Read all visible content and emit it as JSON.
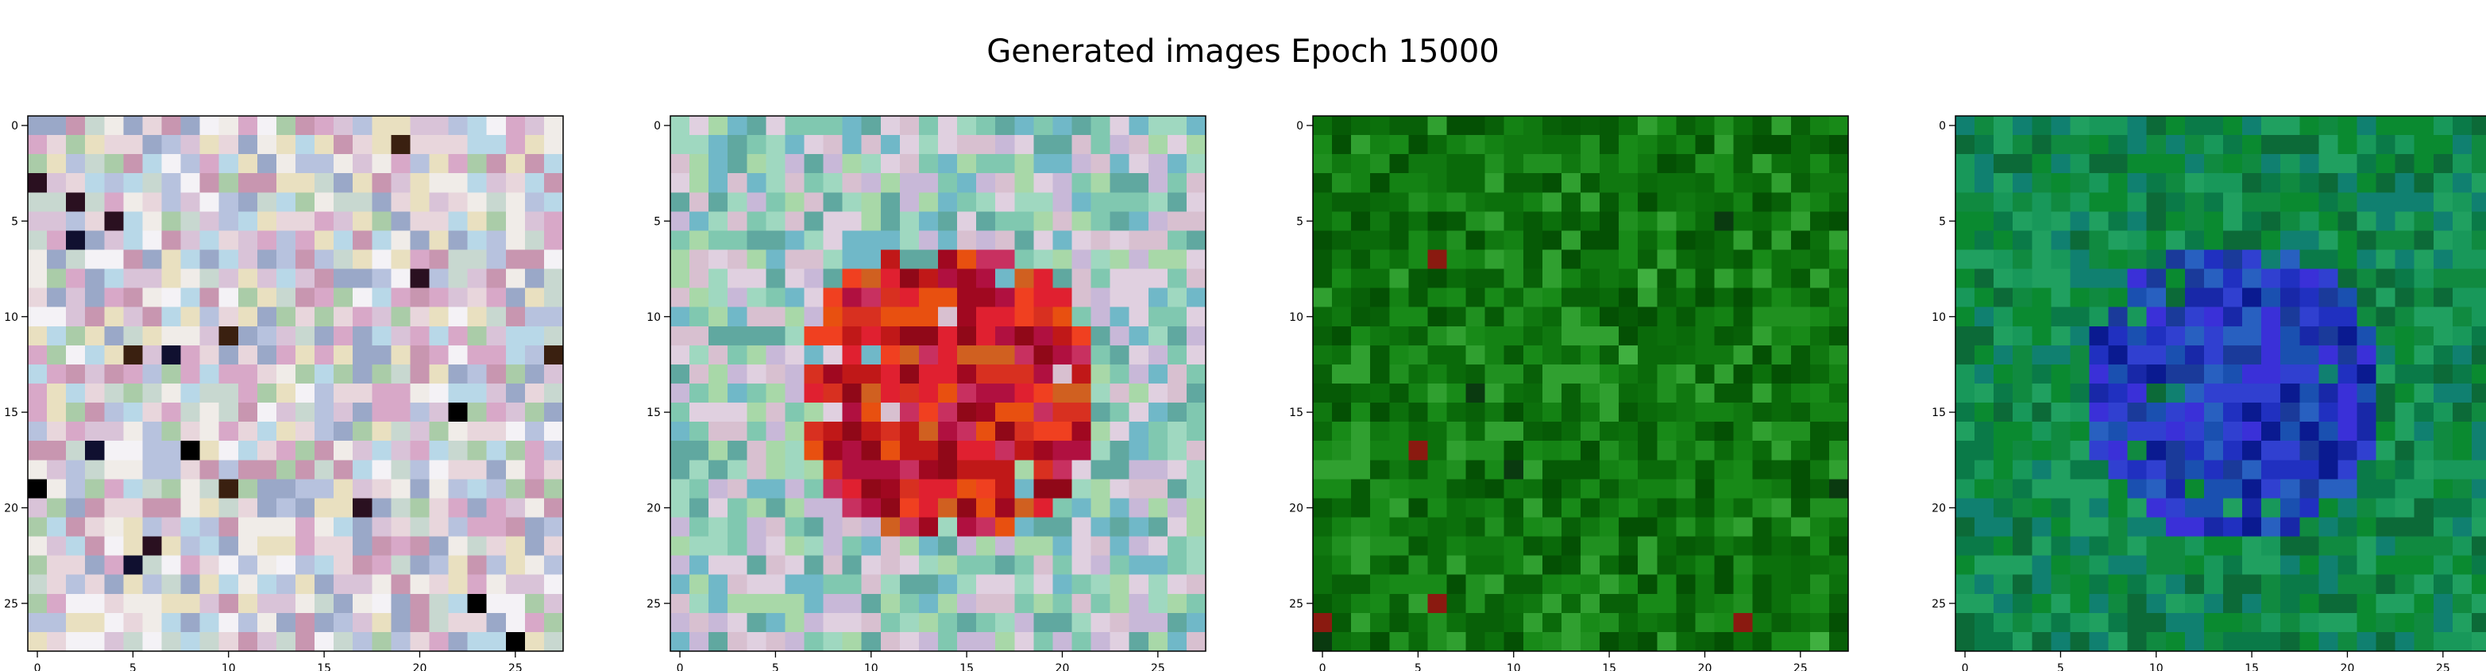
{
  "title": "Generated images Epoch 15000",
  "chart_data": [
    {
      "type": "heatmap",
      "grid_size": 28,
      "xlim": [
        -0.5,
        27.5
      ],
      "ylim": [
        27.5,
        -0.5
      ],
      "xticks": [
        0,
        5,
        10,
        15,
        20,
        25
      ],
      "yticks": [
        0,
        5,
        10,
        15,
        20,
        25
      ],
      "tick_labels": [
        "0",
        "5",
        "10",
        "15",
        "20",
        "25"
      ],
      "palette": [
        "#e8d6dc",
        "#d9c3d8",
        "#c8d8d0",
        "#f0ece8",
        "#b7c2de",
        "#d8a8c8",
        "#aacca8",
        "#e9e0c0",
        "#9aa8c8",
        "#c896b0",
        "#f4f2f6",
        "#b8d8e8"
      ],
      "dark_accents": [
        "#101030",
        "#2a1020",
        "#3a2010",
        "#000000"
      ],
      "pattern": "noise"
    },
    {
      "type": "heatmap",
      "grid_size": 28,
      "xlim": [
        -0.5,
        27.5
      ],
      "ylim": [
        27.5,
        -0.5
      ],
      "xticks": [
        0,
        5,
        10,
        15,
        20,
        25
      ],
      "yticks": [
        0,
        5,
        10,
        15,
        20,
        25
      ],
      "tick_labels": [
        "0",
        "5",
        "10",
        "15",
        "20",
        "25"
      ],
      "palette": [
        "#9fd8c0",
        "#c8b8d8",
        "#80c8b0",
        "#d8c0d0",
        "#70b8c8",
        "#a8d8a8",
        "#e0d0e0",
        "#60a8a0"
      ],
      "center_palette": [
        "#c01818",
        "#a00820",
        "#d83020",
        "#e85010",
        "#b01040",
        "#f04020",
        "#c83060",
        "#d06020",
        "#900818",
        "#e02030"
      ],
      "pattern": "center-blob"
    },
    {
      "type": "heatmap",
      "grid_size": 28,
      "xlim": [
        -0.5,
        27.5
      ],
      "ylim": [
        27.5,
        -0.5
      ],
      "xticks": [
        0,
        5,
        10,
        15,
        20,
        25
      ],
      "yticks": [
        0,
        5,
        10,
        15,
        20,
        25
      ],
      "tick_labels": [
        "0",
        "5",
        "10",
        "15",
        "20",
        "25"
      ],
      "palette": [
        "#0a6a0a",
        "#107810",
        "#086008",
        "#188a18",
        "#0c700c",
        "#209020",
        "#065a06",
        "#148214",
        "#30a030",
        "#045004"
      ],
      "accents": [
        "#8a1a10",
        "#0a3a10",
        "#40b040"
      ],
      "pattern": "noise"
    },
    {
      "type": "heatmap",
      "grid_size": 28,
      "xlim": [
        -0.5,
        27.5
      ],
      "ylim": [
        27.5,
        -0.5
      ],
      "xticks": [
        0,
        5,
        10,
        15,
        20,
        25
      ],
      "yticks": [
        0,
        5,
        10,
        15,
        20,
        25
      ],
      "tick_labels": [
        "0",
        "5",
        "10",
        "15",
        "20",
        "25"
      ],
      "palette": [
        "#108a40",
        "#0a7a48",
        "#18985a",
        "#0c6a38",
        "#20a060",
        "#108070",
        "#0a8a30"
      ],
      "center_palette": [
        "#2030c0",
        "#1828a8",
        "#3040d0",
        "#1a50b0",
        "#0a1a90",
        "#2860c0",
        "#3a30d8",
        "#1a3a9a"
      ],
      "pattern": "center-blob"
    }
  ]
}
